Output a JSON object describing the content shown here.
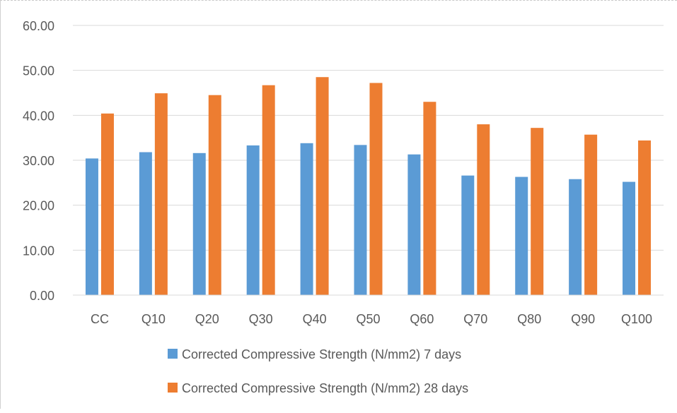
{
  "chart_data": {
    "type": "bar",
    "title": "",
    "xlabel": "",
    "ylabel": "",
    "ylim": [
      0,
      60
    ],
    "y_ticks": [
      "0.00",
      "10.00",
      "20.00",
      "30.00",
      "40.00",
      "50.00",
      "60.00"
    ],
    "grid": true,
    "legend_position": "bottom",
    "categories": [
      "CC",
      "Q10",
      "Q20",
      "Q30",
      "Q40",
      "Q50",
      "Q60",
      "Q70",
      "Q80",
      "Q90",
      "Q100"
    ],
    "series": [
      {
        "name": "Corrected Compressive Strength (N/mm2) 7 days",
        "color": "#5B9BD5",
        "values": [
          30.4,
          31.8,
          31.6,
          33.3,
          33.8,
          33.4,
          31.3,
          26.6,
          26.3,
          25.8,
          25.2
        ]
      },
      {
        "name": "Corrected Compressive Strength (N/mm2) 28 days",
        "color": "#ED7D31",
        "values": [
          40.4,
          44.9,
          44.5,
          46.7,
          48.5,
          47.2,
          43.0,
          38.0,
          37.2,
          35.7,
          34.4
        ]
      }
    ]
  }
}
